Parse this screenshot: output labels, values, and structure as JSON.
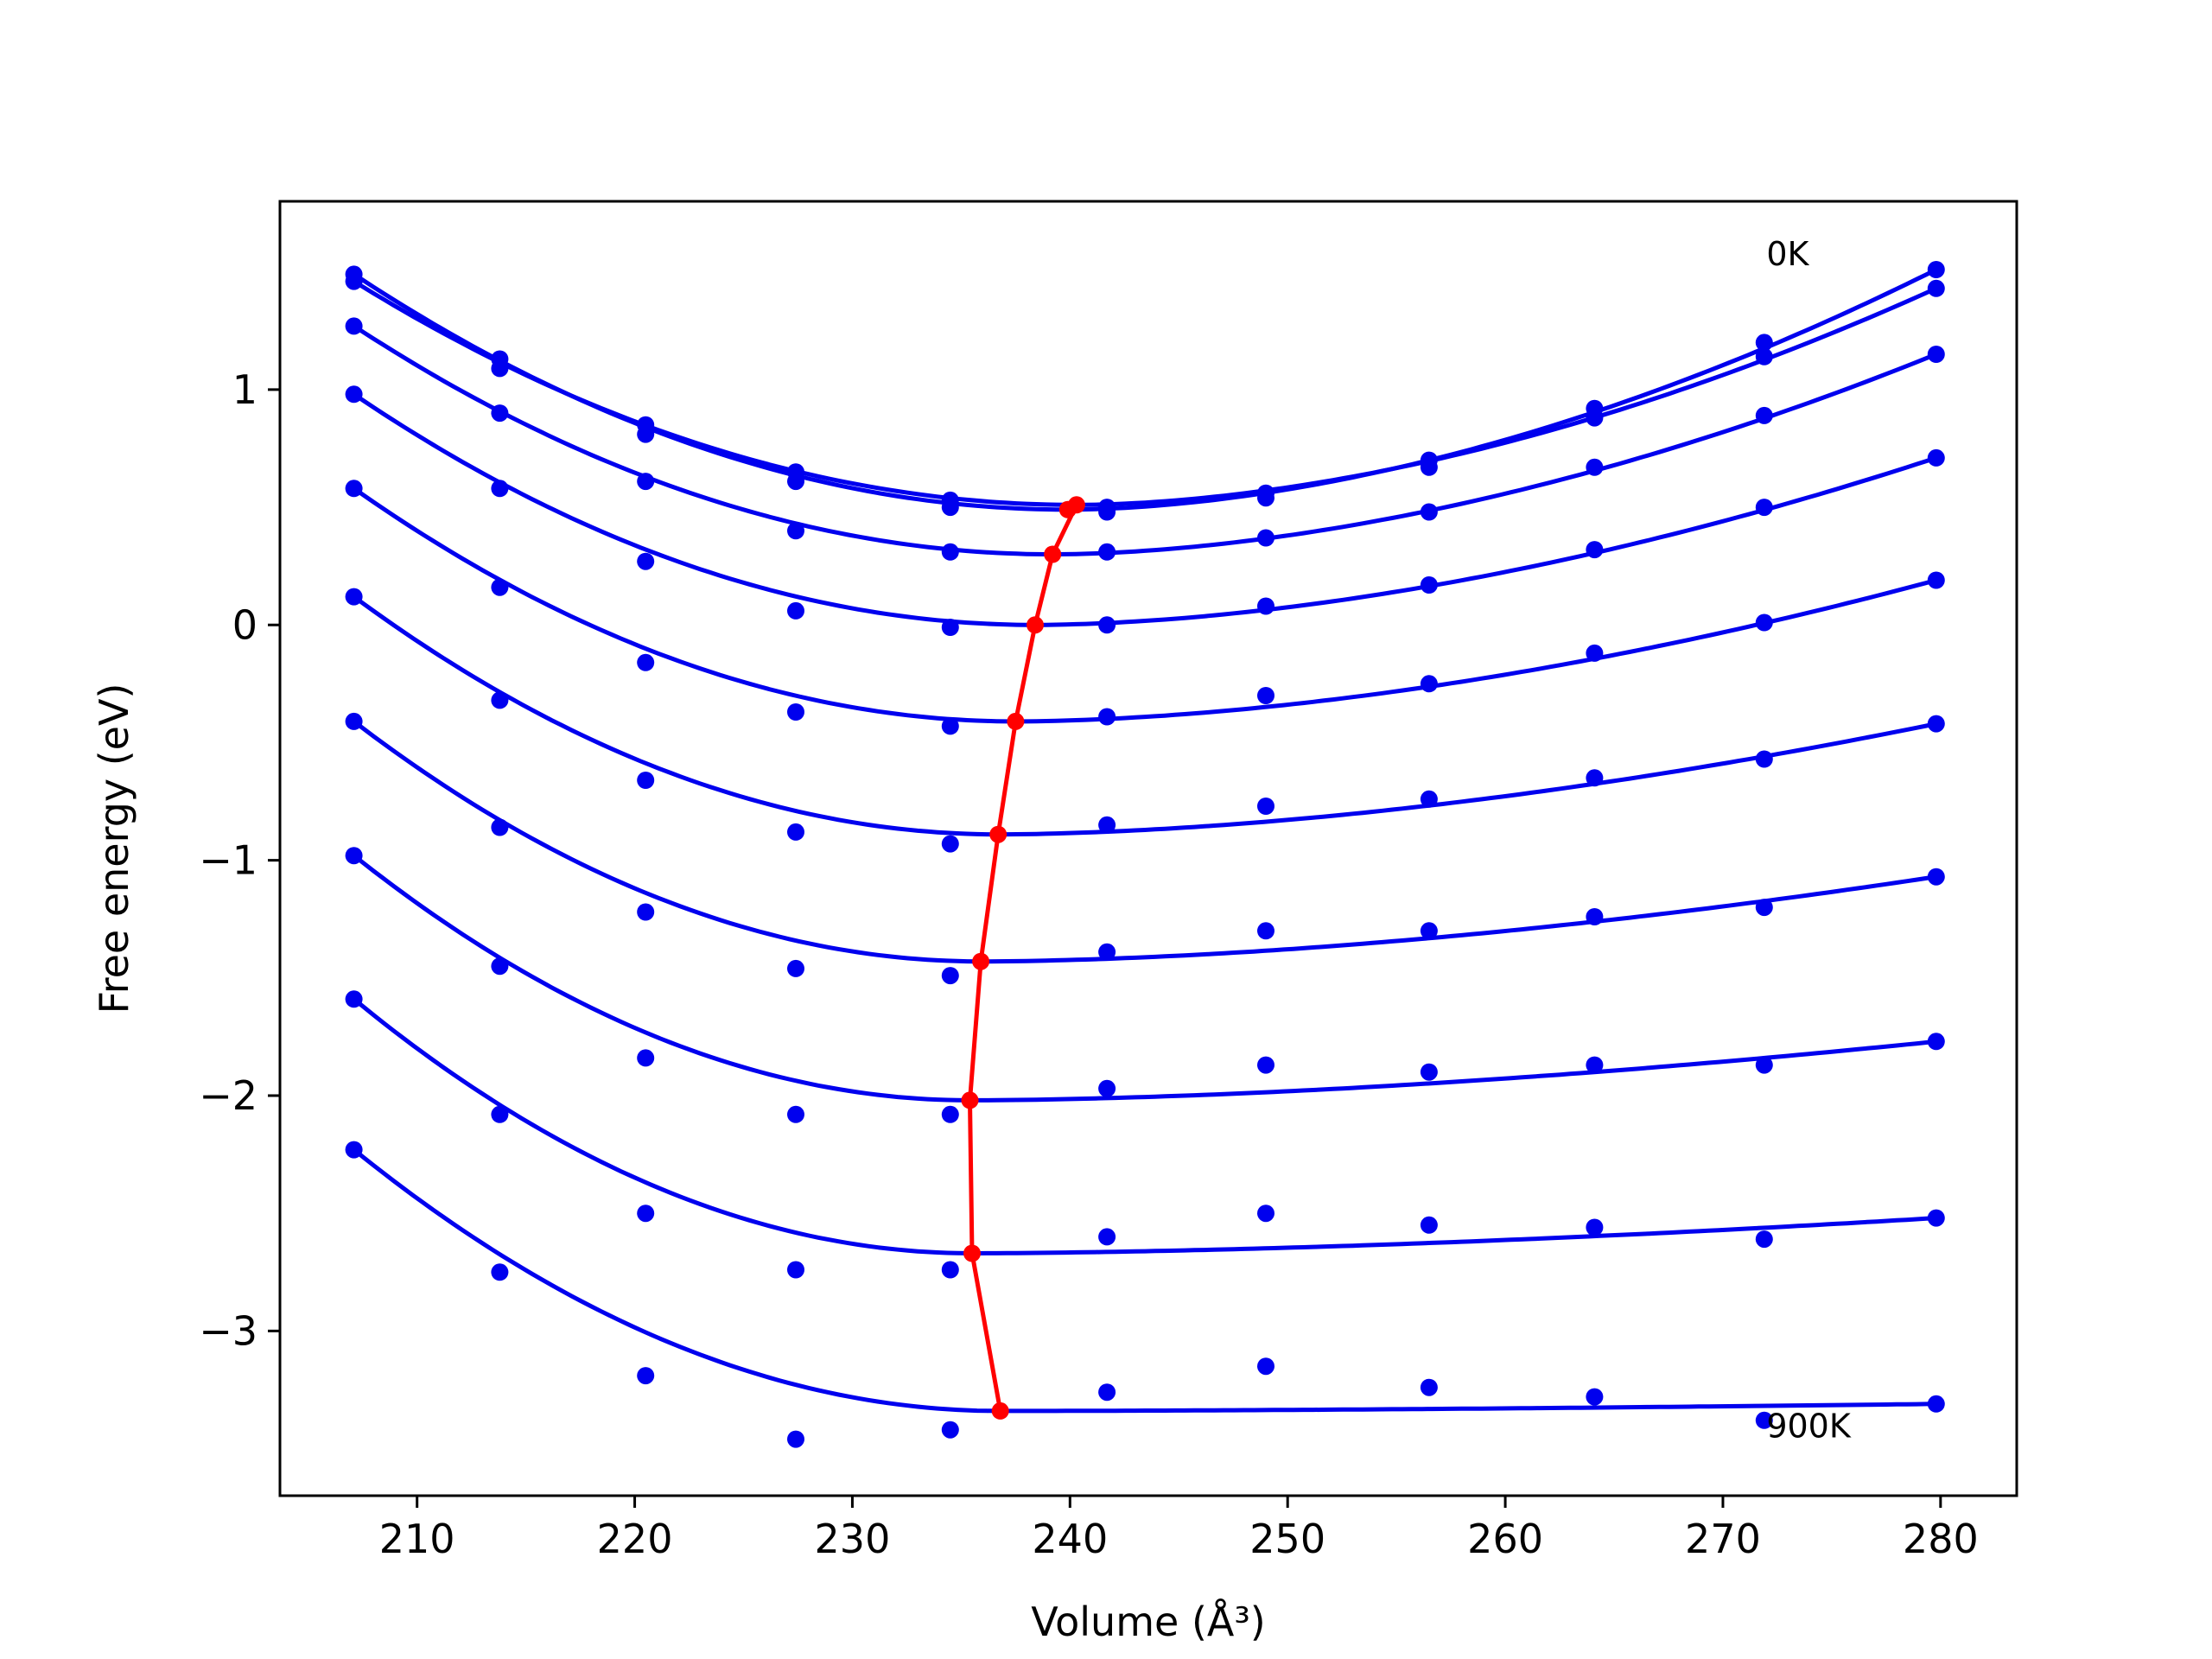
{
  "chart_data": {
    "type": "line",
    "title": "",
    "xlabel": "Volume (Å³)",
    "ylabel": "Free energy (eV)",
    "xlim": [
      203.7,
      283.5
    ],
    "ylim": [
      -3.7,
      1.8
    ],
    "xticks": [
      210,
      220,
      230,
      240,
      250,
      260,
      270,
      280
    ],
    "yticks": [
      -3,
      -2,
      -1,
      0,
      1
    ],
    "grid": false,
    "legend": "none",
    "colors": {
      "fit": "#0000ee",
      "points": "#0000ee",
      "minima": "#ff0000",
      "frame": "#000000"
    },
    "annotations": [
      {
        "text": "0K",
        "x": 272.0,
        "y": 1.58
      },
      {
        "text": "900K",
        "x": 272.0,
        "y": -3.4
      }
    ],
    "volumes": [
      207.1,
      213.8,
      220.5,
      227.4,
      234.5,
      241.7,
      249.0,
      256.5,
      264.1,
      271.9,
      279.8
    ],
    "series": [
      {
        "minV": 239.9,
        "minF": 0.49,
        "points": [
          1.49,
          1.13,
          0.85,
          0.65,
          0.53,
          0.5,
          0.56,
          0.7,
          0.92,
          1.2,
          1.51
        ]
      },
      {
        "minV": 240.3,
        "minF": 0.51,
        "points": [
          1.46,
          1.09,
          0.81,
          0.61,
          0.5,
          0.48,
          0.54,
          0.67,
          0.88,
          1.14,
          1.43
        ]
      },
      {
        "minV": 239.2,
        "minF": 0.3,
        "points": [
          1.27,
          0.9,
          0.61,
          0.4,
          0.31,
          0.31,
          0.37,
          0.48,
          0.67,
          0.89,
          1.15
        ]
      },
      {
        "minV": 238.4,
        "minF": 0.0,
        "points": [
          0.98,
          0.58,
          0.27,
          0.06,
          -0.01,
          0.0,
          0.08,
          0.17,
          0.32,
          0.5,
          0.71
        ]
      },
      {
        "minV": 237.5,
        "minF": -0.41,
        "points": [
          0.58,
          0.16,
          -0.16,
          -0.37,
          -0.43,
          -0.39,
          -0.3,
          -0.25,
          -0.12,
          0.01,
          0.19
        ]
      },
      {
        "minV": 236.7,
        "minF": -0.89,
        "points": [
          0.12,
          -0.32,
          -0.66,
          -0.88,
          -0.93,
          -0.85,
          -0.77,
          -0.74,
          -0.65,
          -0.57,
          -0.42
        ]
      },
      {
        "minV": 235.9,
        "minF": -1.43,
        "points": [
          -0.41,
          -0.86,
          -1.22,
          -1.46,
          -1.49,
          -1.39,
          -1.3,
          -1.3,
          -1.24,
          -1.2,
          -1.07
        ]
      },
      {
        "minV": 235.4,
        "minF": -2.02,
        "points": [
          -0.98,
          -1.45,
          -1.84,
          -2.08,
          -2.08,
          -1.97,
          -1.87,
          -1.9,
          -1.87,
          -1.87,
          -1.77
        ]
      },
      {
        "minV": 235.5,
        "minF": -2.67,
        "points": [
          -1.59,
          -2.08,
          -2.5,
          -2.74,
          -2.74,
          -2.6,
          -2.5,
          -2.55,
          -2.56,
          -2.61,
          -2.52
        ]
      },
      {
        "minV": 236.8,
        "minF": -3.34,
        "points": [
          -2.23,
          -2.75,
          -3.19,
          -3.46,
          -3.42,
          -3.26,
          -3.15,
          -3.24,
          -3.28,
          -3.38,
          -3.31
        ]
      }
    ]
  }
}
